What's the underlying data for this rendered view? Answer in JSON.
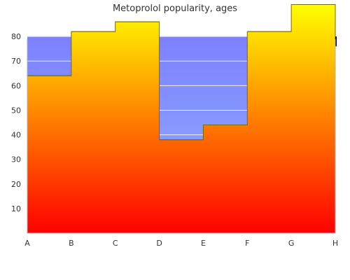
{
  "chart_data": {
    "type": "area",
    "title": "Metoprolol popularity, ages",
    "x": [
      "A",
      "B",
      "C",
      "D",
      "E",
      "F",
      "G",
      "H"
    ],
    "xlabel": "",
    "ylabel": "",
    "yticks": [
      10,
      20,
      30,
      40,
      50,
      60,
      70,
      80
    ],
    "ylim": [
      0,
      92
    ],
    "grid": true,
    "legend": "none",
    "series": [
      {
        "style": "blue-gradient-area",
        "steps": [
          {
            "from": "A",
            "to": "D",
            "value": 80
          },
          {
            "from": "D",
            "to": "H",
            "value": 80
          }
        ]
      },
      {
        "style": "red-yellow-gradient-stepped-area",
        "steps": [
          {
            "from": "A",
            "to": "B",
            "value": 64
          },
          {
            "from": "B",
            "to": "C",
            "value": 82
          },
          {
            "from": "C",
            "to": "D",
            "value": 86
          },
          {
            "from": "D",
            "to": "E",
            "value": 38
          },
          {
            "from": "E",
            "to": "F",
            "value": 44
          },
          {
            "from": "F",
            "to": "G",
            "value": 82
          },
          {
            "from": "G",
            "to": "H",
            "value": 93
          }
        ]
      }
    ],
    "colors": {
      "blue_top": "#7d80ff",
      "blue_bottom": "#8fb4ff",
      "warm_top": "#ffff00",
      "warm_bottom": "#ff0000",
      "outline": "#7a6a00",
      "axis": "#b0b0b0",
      "text": "#333333"
    }
  }
}
